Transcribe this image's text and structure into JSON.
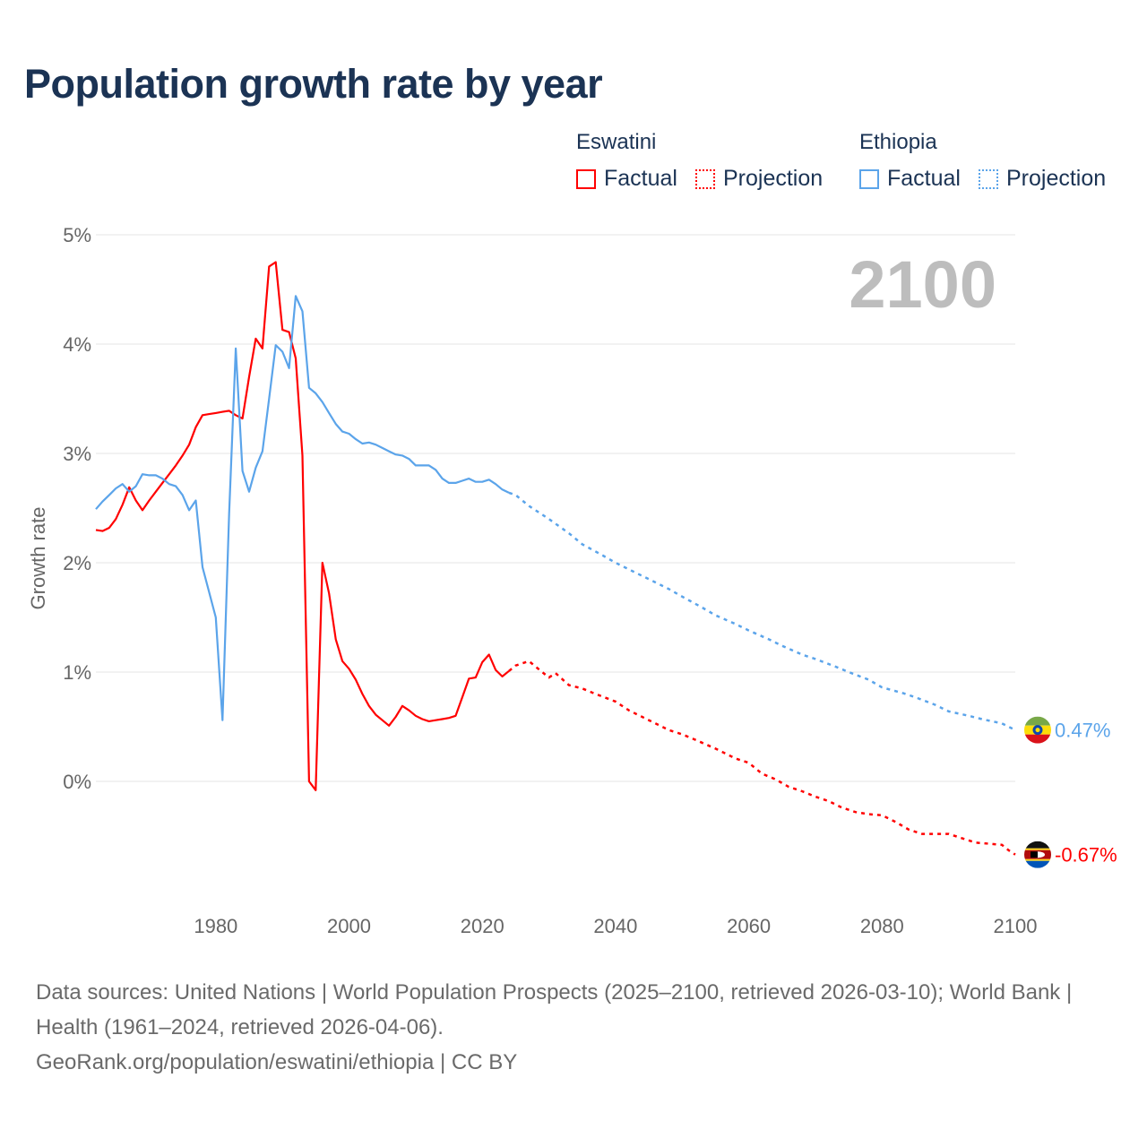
{
  "title": "Population growth rate by year",
  "legend": {
    "groups": [
      {
        "country": "Eswatini",
        "factual_label": "Factual",
        "projection_label": "Projection",
        "color": "#ff0000"
      },
      {
        "country": "Ethiopia",
        "factual_label": "Factual",
        "projection_label": "Projection",
        "color": "#5ba4ea"
      }
    ]
  },
  "year_watermark": "2100",
  "source": {
    "line1": "Data sources: United Nations | World Population Prospects (2025–2100, retrieved 2026-03-10); World Bank | Health (1961–2024, retrieved 2026-04-06).",
    "line2": "GeoRank.org/population/eswatini/ethiopia | CC BY"
  },
  "chart_data": {
    "type": "line",
    "title": "Population growth rate by year",
    "xlabel": "",
    "ylabel": "Growth rate",
    "xlim": [
      1962,
      2100
    ],
    "ylim": [
      -1.1,
      5
    ],
    "x_ticks": [
      1980,
      2000,
      2020,
      2040,
      2060,
      2080,
      2100
    ],
    "x_tick_labels": [
      "1980",
      "2000",
      "2020",
      "2040",
      "2060",
      "2080",
      "2100"
    ],
    "y_ticks": [
      0,
      1,
      2,
      3,
      4,
      5
    ],
    "y_tick_labels": [
      "0%",
      "1%",
      "2%",
      "3%",
      "4%",
      "5%"
    ],
    "grid": true,
    "legend_position": "top-right",
    "series": [
      {
        "name": "Eswatini",
        "color": "#ff0000",
        "end_label": "-0.67%",
        "factual": {
          "x": [
            1962,
            1963,
            1964,
            1965,
            1966,
            1967,
            1968,
            1969,
            1970,
            1971,
            1972,
            1973,
            1974,
            1975,
            1976,
            1977,
            1978,
            1979,
            1980,
            1981,
            1982,
            1983,
            1984,
            1985,
            1986,
            1987,
            1988,
            1989,
            1990,
            1991,
            1992,
            1993,
            1994,
            1995,
            1996,
            1997,
            1998,
            1999,
            2000,
            2001,
            2002,
            2003,
            2004,
            2005,
            2006,
            2007,
            2008,
            2009,
            2010,
            2011,
            2012,
            2013,
            2014,
            2015,
            2016,
            2017,
            2018,
            2019,
            2020,
            2021,
            2022,
            2023,
            2024
          ],
          "y": [
            2.3,
            2.29,
            2.32,
            2.4,
            2.53,
            2.69,
            2.57,
            2.48,
            2.57,
            2.65,
            2.73,
            2.81,
            2.89,
            2.98,
            3.08,
            3.24,
            3.35,
            3.36,
            3.37,
            3.38,
            3.39,
            3.35,
            3.32,
            3.7,
            4.05,
            3.96,
            4.71,
            4.75,
            4.13,
            4.11,
            3.87,
            2.98,
            0.0,
            -0.08,
            2.0,
            1.72,
            1.3,
            1.1,
            1.03,
            0.93,
            0.8,
            0.69,
            0.61,
            0.56,
            0.51,
            0.59,
            0.69,
            0.65,
            0.6,
            0.57,
            0.55,
            0.56,
            0.57,
            0.58,
            0.6,
            0.77,
            0.94,
            0.95,
            1.09,
            1.16,
            1.02,
            0.96,
            1.01
          ]
        },
        "projection": {
          "x": [
            2024,
            2025,
            2027,
            2029,
            2030,
            2031,
            2033,
            2035,
            2037,
            2040,
            2042,
            2045,
            2048,
            2050,
            2052,
            2055,
            2057,
            2058,
            2060,
            2062,
            2064,
            2066,
            2068,
            2070,
            2072,
            2074,
            2076,
            2078,
            2080,
            2082,
            2084,
            2086,
            2088,
            2090,
            2092,
            2094,
            2096,
            2098,
            2099,
            2100
          ],
          "y": [
            1.01,
            1.06,
            1.1,
            1.0,
            0.95,
            0.99,
            0.88,
            0.85,
            0.8,
            0.73,
            0.65,
            0.56,
            0.47,
            0.43,
            0.38,
            0.3,
            0.24,
            0.21,
            0.17,
            0.07,
            0.02,
            -0.05,
            -0.09,
            -0.14,
            -0.18,
            -0.24,
            -0.28,
            -0.3,
            -0.31,
            -0.37,
            -0.44,
            -0.48,
            -0.48,
            -0.48,
            -0.52,
            -0.56,
            -0.57,
            -0.58,
            -0.63,
            -0.67
          ]
        }
      },
      {
        "name": "Ethiopia",
        "color": "#5ba4ea",
        "end_label": "0.47%",
        "factual": {
          "x": [
            1962,
            1963,
            1964,
            1965,
            1966,
            1967,
            1968,
            1969,
            1970,
            1971,
            1972,
            1973,
            1974,
            1975,
            1976,
            1977,
            1978,
            1979,
            1980,
            1981,
            1982,
            1983,
            1984,
            1985,
            1986,
            1987,
            1988,
            1989,
            1990,
            1991,
            1992,
            1993,
            1994,
            1995,
            1996,
            1997,
            1998,
            1999,
            2000,
            2001,
            2002,
            2003,
            2004,
            2005,
            2006,
            2007,
            2008,
            2009,
            2010,
            2011,
            2012,
            2013,
            2014,
            2015,
            2016,
            2017,
            2018,
            2019,
            2020,
            2021,
            2022,
            2023,
            2024
          ],
          "y": [
            2.49,
            2.56,
            2.62,
            2.68,
            2.72,
            2.65,
            2.7,
            2.81,
            2.8,
            2.8,
            2.77,
            2.72,
            2.7,
            2.62,
            2.48,
            2.57,
            1.96,
            1.73,
            1.5,
            0.56,
            2.45,
            3.96,
            2.84,
            2.65,
            2.87,
            3.02,
            3.5,
            3.99,
            3.93,
            3.78,
            4.44,
            4.3,
            3.6,
            3.55,
            3.47,
            3.37,
            3.27,
            3.2,
            3.18,
            3.13,
            3.09,
            3.1,
            3.08,
            3.05,
            3.02,
            2.99,
            2.98,
            2.95,
            2.89,
            2.89,
            2.89,
            2.85,
            2.77,
            2.73,
            2.73,
            2.75,
            2.77,
            2.74,
            2.74,
            2.76,
            2.72,
            2.67,
            2.64
          ]
        },
        "projection": {
          "x": [
            2024,
            2025,
            2027,
            2030,
            2033,
            2035,
            2038,
            2040,
            2043,
            2045,
            2048,
            2050,
            2053,
            2055,
            2058,
            2060,
            2063,
            2065,
            2068,
            2070,
            2073,
            2075,
            2078,
            2080,
            2083,
            2085,
            2088,
            2090,
            2093,
            2095,
            2098,
            2100
          ],
          "y": [
            2.64,
            2.62,
            2.52,
            2.4,
            2.27,
            2.17,
            2.07,
            2.0,
            1.91,
            1.85,
            1.76,
            1.69,
            1.59,
            1.52,
            1.44,
            1.38,
            1.3,
            1.24,
            1.16,
            1.12,
            1.05,
            1.0,
            0.93,
            0.86,
            0.81,
            0.77,
            0.7,
            0.64,
            0.6,
            0.57,
            0.53,
            0.47
          ]
        }
      }
    ]
  }
}
